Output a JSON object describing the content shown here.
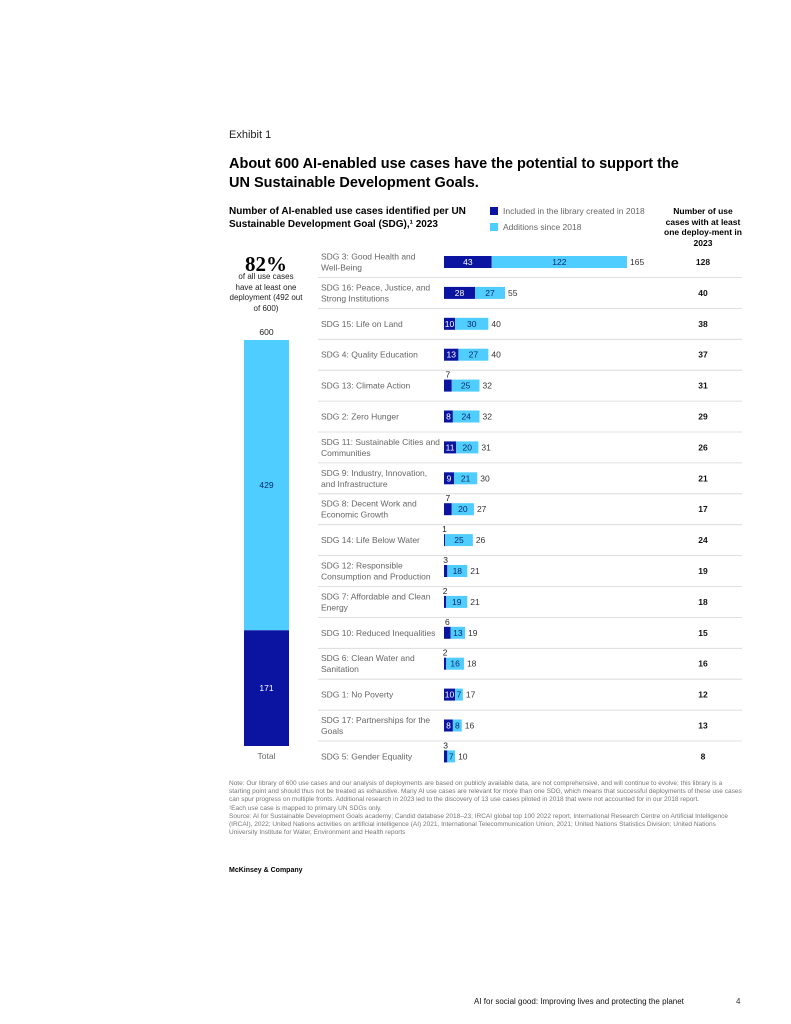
{
  "exhibit_label": "Exhibit 1",
  "title": "About 600 AI-enabled use cases have the potential to support the UN Sustainable Development Goals.",
  "subtitle": "Number of AI-enabled use cases identified per UN Sustainable Development Goal (SDG),¹ 2023",
  "colors": {
    "dark": "#0a14a0",
    "light": "#50cdff",
    "divider": "#d6d6d6"
  },
  "kpi": {
    "percent": "82%",
    "text": "of all use cases have at least one deployment (492 out of 600)"
  },
  "chart_data": [
    {
      "type": "bar",
      "orientation": "vertical-stacked",
      "categories": [
        "Total"
      ],
      "series": [
        {
          "name": "Included in the library created in 2018",
          "values": [
            171
          ]
        },
        {
          "name": "Additions since 2018",
          "values": [
            429
          ]
        }
      ],
      "totals": [
        600
      ],
      "tick_labels": [
        "Total"
      ]
    },
    {
      "type": "bar",
      "orientation": "horizontal-stacked",
      "legend": [
        {
          "label": "Included in the library created in 2018",
          "color": "#0a14a0"
        },
        {
          "label": "Additions since 2018",
          "color": "#50cdff"
        }
      ],
      "column_header": "Number of use cases with at least one deploy-ment in 2023",
      "categories": [
        [
          "SDG 3: Good Health and",
          "Well-Being"
        ],
        [
          "SDG 16: Peace, Justice, and",
          "Strong Institutions"
        ],
        [
          "SDG 15: Life on Land"
        ],
        [
          "SDG 4: Quality Education"
        ],
        [
          "SDG 13: Climate Action"
        ],
        [
          "SDG 2: Zero Hunger"
        ],
        [
          "SDG 11: Sustainable Cities and",
          "Communities"
        ],
        [
          "SDG 9: Industry, Innovation,",
          "and Infrastructure"
        ],
        [
          "SDG 8: Decent Work and",
          "Economic Growth"
        ],
        [
          "SDG 14: Life Below Water"
        ],
        [
          "SDG 12: Responsible",
          "Consumption and Production"
        ],
        [
          "SDG 7: Affordable and Clean",
          "Energy"
        ],
        [
          "SDG 10: Reduced Inequalities"
        ],
        [
          "SDG 6: Clean Water and",
          "Sanitation"
        ],
        [
          "SDG 1: No Poverty"
        ],
        [
          "SDG 17: Partnerships for the",
          "Goals"
        ],
        [
          "SDG 5: Gender Equality"
        ]
      ],
      "series": [
        {
          "name": "Included in the library created in 2018",
          "values": [
            43,
            28,
            10,
            13,
            7,
            8,
            11,
            9,
            7,
            1,
            3,
            2,
            6,
            2,
            10,
            8,
            3
          ]
        },
        {
          "name": "Additions since 2018",
          "values": [
            122,
            27,
            30,
            27,
            25,
            24,
            20,
            21,
            20,
            25,
            18,
            19,
            13,
            16,
            7,
            8,
            7
          ]
        }
      ],
      "totals": [
        165,
        55,
        40,
        40,
        32,
        32,
        31,
        30,
        27,
        26,
        21,
        21,
        19,
        18,
        17,
        16,
        10
      ],
      "deployed": [
        128,
        40,
        38,
        37,
        31,
        29,
        26,
        21,
        17,
        24,
        19,
        18,
        15,
        16,
        12,
        13,
        8
      ]
    }
  ],
  "notes": [
    "Note: Our library of 600 use cases and our analysis of deployments are based on publicly available data, are not comprehensive, and will continue to evolve; this library is a starting point and should thus not be treated as exhaustive. Many AI use cases are relevant for more than one SDG, which means that successful deployments of these use cases can spur progress on multiple fronts. Additional research in 2023 led to the discovery of 13 use cases piloted in 2018 that were not accounted for in our 2018 report.",
    "¹Each use case is mapped to primary UN SDGs only.",
    "Source: AI for Sustainable Development Goals academy; Candid database 2018–23; IRCAI global top 100 2022 report, International Research Centre on Artificial Intelligence (IRCAI), 2022; United Nations activities on artificial intelligence (AI) 2021, International Telecommunication Union, 2021; United Nations Statistics Division; United Nations University Institute for Water, Environment and Health reports"
  ],
  "brand": "McKinsey & Company",
  "footer": {
    "title": "AI for social good: Improving lives and protecting the planet",
    "page": "4"
  }
}
